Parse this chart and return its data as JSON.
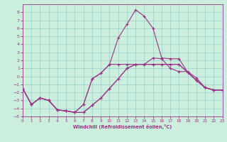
{
  "title": "",
  "xlabel": "Windchill (Refroidissement éolien,°C)",
  "xlim": [
    0,
    23
  ],
  "ylim": [
    -5,
    9
  ],
  "xticks": [
    0,
    1,
    2,
    3,
    4,
    5,
    6,
    7,
    8,
    9,
    10,
    11,
    12,
    13,
    14,
    15,
    16,
    17,
    18,
    19,
    20,
    21,
    22,
    23
  ],
  "yticks": [
    -5,
    -4,
    -3,
    -2,
    -1,
    0,
    1,
    2,
    3,
    4,
    5,
    6,
    7,
    8
  ],
  "bg_color": "#cceedd",
  "line_color": "#993388",
  "grid_color": "#99cccc",
  "font_color": "#993388",
  "series": [
    [
      [
        0,
        -1.5
      ],
      [
        1,
        -3.5
      ],
      [
        2,
        -2.7
      ],
      [
        3,
        -3.0
      ],
      [
        4,
        -4.2
      ],
      [
        5,
        -4.3
      ],
      [
        6,
        -4.5
      ],
      [
        7,
        -3.5
      ],
      [
        8,
        -0.3
      ],
      [
        9,
        0.4
      ],
      [
        10,
        1.5
      ],
      [
        11,
        1.5
      ],
      [
        12,
        1.5
      ],
      [
        13,
        1.5
      ],
      [
        14,
        1.5
      ],
      [
        15,
        2.3
      ],
      [
        16,
        2.2
      ],
      [
        17,
        1.0
      ],
      [
        18,
        0.6
      ],
      [
        19,
        0.6
      ],
      [
        20,
        -0.2
      ],
      [
        21,
        -1.4
      ],
      [
        22,
        -1.7
      ],
      [
        23,
        -1.7
      ]
    ],
    [
      [
        0,
        -1.5
      ],
      [
        1,
        -3.5
      ],
      [
        2,
        -2.7
      ],
      [
        3,
        -3.0
      ],
      [
        4,
        -4.2
      ],
      [
        5,
        -4.3
      ],
      [
        6,
        -4.5
      ],
      [
        7,
        -3.5
      ],
      [
        8,
        -0.3
      ],
      [
        9,
        0.4
      ],
      [
        10,
        1.5
      ],
      [
        11,
        4.8
      ],
      [
        12,
        6.5
      ],
      [
        13,
        8.3
      ],
      [
        14,
        7.5
      ],
      [
        15,
        6.0
      ],
      [
        16,
        2.3
      ],
      [
        17,
        2.2
      ],
      [
        18,
        2.2
      ],
      [
        19,
        0.5
      ],
      [
        20,
        -0.5
      ],
      [
        21,
        -1.4
      ],
      [
        22,
        -1.7
      ],
      [
        23,
        -1.7
      ]
    ],
    [
      [
        0,
        -1.5
      ],
      [
        1,
        -3.5
      ],
      [
        2,
        -2.7
      ],
      [
        3,
        -3.0
      ],
      [
        4,
        -4.2
      ],
      [
        5,
        -4.3
      ],
      [
        6,
        -4.5
      ],
      [
        7,
        -4.5
      ],
      [
        8,
        -3.6
      ],
      [
        9,
        -2.7
      ],
      [
        10,
        -1.5
      ],
      [
        11,
        -0.3
      ],
      [
        12,
        1.0
      ],
      [
        13,
        1.5
      ],
      [
        14,
        1.5
      ],
      [
        15,
        1.5
      ],
      [
        16,
        1.5
      ],
      [
        17,
        1.5
      ],
      [
        18,
        1.5
      ],
      [
        19,
        0.5
      ],
      [
        20,
        -0.5
      ],
      [
        21,
        -1.4
      ],
      [
        22,
        -1.7
      ],
      [
        23,
        -1.7
      ]
    ],
    [
      [
        0,
        -1.5
      ],
      [
        1,
        -3.5
      ],
      [
        2,
        -2.7
      ],
      [
        3,
        -3.0
      ],
      [
        4,
        -4.2
      ],
      [
        5,
        -4.3
      ],
      [
        6,
        -4.5
      ],
      [
        7,
        -4.5
      ],
      [
        8,
        -3.6
      ],
      [
        9,
        -2.7
      ],
      [
        10,
        -1.5
      ],
      [
        11,
        -0.3
      ],
      [
        12,
        1.0
      ],
      [
        13,
        1.5
      ],
      [
        14,
        1.5
      ],
      [
        15,
        1.5
      ],
      [
        16,
        1.5
      ],
      [
        17,
        1.5
      ],
      [
        18,
        1.5
      ],
      [
        19,
        0.5
      ],
      [
        20,
        -0.5
      ],
      [
        21,
        -1.4
      ],
      [
        22,
        -1.7
      ],
      [
        23,
        -1.7
      ]
    ]
  ]
}
